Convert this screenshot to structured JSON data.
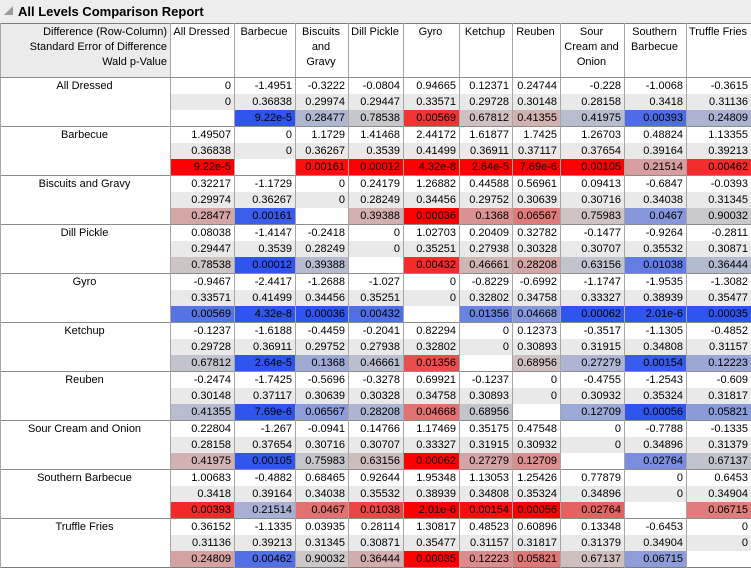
{
  "title": "All Levels Comparison Report",
  "row_header_lines": [
    "Difference (Row-Column)",
    "Standard Error of Difference",
    "Wald p-Value"
  ],
  "columns": [
    "All Dressed",
    "Barbecue",
    "Biscuits and Gravy",
    "Dill Pickle",
    "Gyro",
    "Ketchup",
    "Reuben",
    "Sour Cream and Onion",
    "Southern Barbecue",
    "Truffle Fries"
  ],
  "rows": [
    {
      "label": "All Dressed",
      "diff": [
        "0",
        "-1.4951",
        "-0.3222",
        "-0.0804",
        "0.94665",
        "0.12371",
        "0.24744",
        "-0.228",
        "-1.0068",
        "-0.3615"
      ],
      "se": [
        "0",
        "0.36838",
        "0.29974",
        "0.29447",
        "0.33571",
        "0.29728",
        "0.30148",
        "0.28158",
        "0.3418",
        "0.31136"
      ],
      "p": [
        "",
        "9.22e-5",
        "0.28477",
        "0.78538",
        "0.00569",
        "0.67812",
        "0.41355",
        "0.41975",
        "0.00393",
        "0.24809"
      ]
    },
    {
      "label": "Barbecue",
      "diff": [
        "1.49507",
        "0",
        "1.1729",
        "1.41468",
        "2.44172",
        "1.61877",
        "1.7425",
        "1.26703",
        "0.48824",
        "1.13355"
      ],
      "se": [
        "0.36838",
        "0",
        "0.36267",
        "0.3539",
        "0.41499",
        "0.36911",
        "0.37117",
        "0.37654",
        "0.39164",
        "0.39213"
      ],
      "p": [
        "9.22e-5",
        "",
        "0.00161",
        "0.00012",
        "4.32e-8",
        "2.64e-5",
        "7.69e-6",
        "0.00105",
        "0.21514",
        "0.00462"
      ]
    },
    {
      "label": "Biscuits and Gravy",
      "diff": [
        "0.32217",
        "-1.1729",
        "0",
        "0.24179",
        "1.26882",
        "0.44588",
        "0.56961",
        "0.09413",
        "-0.6847",
        "-0.0393"
      ],
      "se": [
        "0.29974",
        "0.36267",
        "0",
        "0.28249",
        "0.34456",
        "0.29752",
        "0.30639",
        "0.30716",
        "0.34038",
        "0.31345"
      ],
      "p": [
        "0.28477",
        "0.00161",
        "",
        "0.39388",
        "0.00036",
        "0.1368",
        "0.06567",
        "0.75983",
        "0.0467",
        "0.90032"
      ]
    },
    {
      "label": "Dill Pickle",
      "diff": [
        "0.08038",
        "-1.4147",
        "-0.2418",
        "0",
        "1.02703",
        "0.20409",
        "0.32782",
        "-0.1477",
        "-0.9264",
        "-0.2811"
      ],
      "se": [
        "0.29447",
        "0.3539",
        "0.28249",
        "0",
        "0.35251",
        "0.27938",
        "0.30328",
        "0.30707",
        "0.35532",
        "0.30871"
      ],
      "p": [
        "0.78538",
        "0.00012",
        "0.39388",
        "",
        "0.00432",
        "0.46661",
        "0.28208",
        "0.63156",
        "0.01038",
        "0.36444"
      ]
    },
    {
      "label": "Gyro",
      "diff": [
        "-0.9467",
        "-2.4417",
        "-1.2688",
        "-1.027",
        "0",
        "-0.8229",
        "-0.6992",
        "-1.1747",
        "-1.9535",
        "-1.3082"
      ],
      "se": [
        "0.33571",
        "0.41499",
        "0.34456",
        "0.35251",
        "0",
        "0.32802",
        "0.34758",
        "0.33327",
        "0.38939",
        "0.35477"
      ],
      "p": [
        "0.00569",
        "4.32e-8",
        "0.00036",
        "0.00432",
        "",
        "0.01356",
        "0.04668",
        "0.00062",
        "2.01e-6",
        "0.00035"
      ]
    },
    {
      "label": "Ketchup",
      "diff": [
        "-0.1237",
        "-1.6188",
        "-0.4459",
        "-0.2041",
        "0.82294",
        "0",
        "0.12373",
        "-0.3517",
        "-1.1305",
        "-0.4852"
      ],
      "se": [
        "0.29728",
        "0.36911",
        "0.29752",
        "0.27938",
        "0.32802",
        "0",
        "0.30893",
        "0.31915",
        "0.34808",
        "0.31157"
      ],
      "p": [
        "0.67812",
        "2.64e-5",
        "0.1368",
        "0.46661",
        "0.01356",
        "",
        "0.68956",
        "0.27279",
        "0.00154",
        "0.12223"
      ]
    },
    {
      "label": "Reuben",
      "diff": [
        "-0.2474",
        "-1.7425",
        "-0.5696",
        "-0.3278",
        "0.69921",
        "-0.1237",
        "0",
        "-0.4755",
        "-1.2543",
        "-0.609"
      ],
      "se": [
        "0.30148",
        "0.37117",
        "0.30639",
        "0.30328",
        "0.34758",
        "0.30893",
        "0",
        "0.30932",
        "0.35324",
        "0.31817"
      ],
      "p": [
        "0.41355",
        "7.69e-6",
        "0.06567",
        "0.28208",
        "0.04668",
        "0.68956",
        "",
        "0.12709",
        "0.00056",
        "0.05821"
      ]
    },
    {
      "label": "Sour Cream and Onion",
      "diff": [
        "0.22804",
        "-1.267",
        "-0.0941",
        "0.14766",
        "1.17469",
        "0.35175",
        "0.47548",
        "0",
        "-0.7788",
        "-0.1335"
      ],
      "se": [
        "0.28158",
        "0.37654",
        "0.30716",
        "0.30707",
        "0.33327",
        "0.31915",
        "0.30932",
        "0",
        "0.34896",
        "0.31379"
      ],
      "p": [
        "0.41975",
        "0.00105",
        "0.75983",
        "0.63156",
        "0.00062",
        "0.27279",
        "0.12709",
        "",
        "0.02764",
        "0.67137"
      ]
    },
    {
      "label": "Southern Barbecue",
      "diff": [
        "1.00683",
        "-0.4882",
        "0.68465",
        "0.92644",
        "1.95348",
        "1.13053",
        "1.25426",
        "0.77879",
        "0",
        "0.6453"
      ],
      "se": [
        "0.3418",
        "0.39164",
        "0.34038",
        "0.35532",
        "0.38939",
        "0.34808",
        "0.35324",
        "0.34896",
        "0",
        "0.34904"
      ],
      "p": [
        "0.00393",
        "0.21514",
        "0.0467",
        "0.01038",
        "2.01e-6",
        "0.00154",
        "0.00056",
        "0.02764",
        "",
        "0.06715"
      ]
    },
    {
      "label": "Truffle Fries",
      "diff": [
        "0.36152",
        "-1.1335",
        "0.03935",
        "0.28114",
        "1.30817",
        "0.48523",
        "0.60896",
        "0.13348",
        "-0.6453",
        "0"
      ],
      "se": [
        "0.31136",
        "0.39213",
        "0.31345",
        "0.30871",
        "0.35477",
        "0.31157",
        "0.31817",
        "0.31379",
        "0.34904",
        "0"
      ],
      "p": [
        "0.24809",
        "0.00462",
        "0.90032",
        "0.36444",
        "0.00035",
        "0.12223",
        "0.05821",
        "0.67137",
        "0.06715",
        ""
      ]
    }
  ],
  "colors": {
    "p_neutral": "#cbcbcb",
    "p_positive_strong": "#fe0000",
    "p_negative_strong": "#2f55ee",
    "p_empty": "#ffffff",
    "se_row_bg": "#e9e9e9",
    "diff_row_bg": "#ffffff",
    "label_header_bg": "#ebebeb",
    "border": "#8c8c8c"
  }
}
